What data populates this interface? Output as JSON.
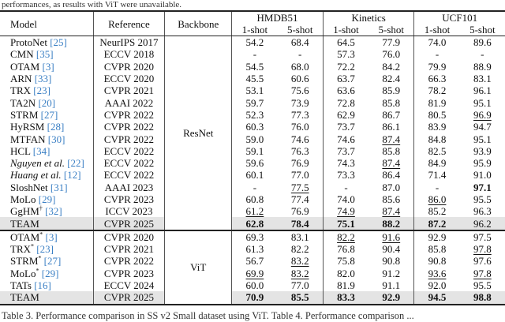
{
  "captions": {
    "top": "performances, as results with ViT were unavailable.",
    "bottom": "Table 3. Performance comparison in SS v2 Small dataset using ViT.   Table 4. Performance comparison ..."
  },
  "table": {
    "headers": {
      "model": "Model",
      "reference": "Reference",
      "backbone": "Backbone"
    },
    "datasets": [
      "HMDB51",
      "Kinetics",
      "UCF101"
    ],
    "shots": [
      "1-shot",
      "5-shot",
      "1-shot",
      "5-shot",
      "1-shot",
      "5-shot"
    ],
    "sections": [
      {
        "backbone": "ResNet",
        "rows": [
          {
            "name": "ProtoNet",
            "cite": "[25]",
            "reference": "NeurIPS 2017",
            "values": [
              "54.2",
              "68.4",
              "64.5",
              "77.9",
              "74.0",
              "89.6"
            ]
          },
          {
            "name": "CMN",
            "cite": "[35]",
            "reference": "ECCV 2018",
            "values": [
              "-",
              "-",
              "57.3",
              "76.0",
              "-",
              "-"
            ]
          },
          {
            "name": "OTAM",
            "cite": "[3]",
            "reference": "CVPR 2020",
            "values": [
              "54.5",
              "68.0",
              "72.2",
              "84.2",
              "79.9",
              "88.9"
            ]
          },
          {
            "name": "ARN",
            "cite": "[33]",
            "reference": "ECCV 2020",
            "values": [
              "45.5",
              "60.6",
              "63.7",
              "82.4",
              "66.3",
              "83.1"
            ]
          },
          {
            "name": "TRX",
            "cite": "[23]",
            "reference": "CVPR 2021",
            "values": [
              "53.1",
              "75.6",
              "63.6",
              "85.9",
              "78.2",
              "96.1"
            ]
          },
          {
            "name": "TA2N",
            "cite": "[20]",
            "reference": "AAAI 2022",
            "values": [
              "59.7",
              "73.9",
              "72.8",
              "85.8",
              "81.9",
              "95.1"
            ]
          },
          {
            "name": "STRM",
            "cite": "[27]",
            "reference": "CVPR 2022",
            "values": [
              "52.3",
              "77.3",
              "62.9",
              "86.7",
              "80.5",
              "96.9"
            ],
            "underline": [
              5
            ]
          },
          {
            "name": "HyRSM",
            "cite": "[28]",
            "reference": "CVPR 2022",
            "values": [
              "60.3",
              "76.0",
              "73.7",
              "86.1",
              "83.9",
              "94.7"
            ]
          },
          {
            "name": "MTFAN",
            "cite": "[30]",
            "reference": "CVPR 2022",
            "values": [
              "59.0",
              "74.6",
              "74.6",
              "87.4",
              "84.8",
              "95.1"
            ],
            "underline": [
              3
            ]
          },
          {
            "name": "HCL",
            "cite": "[34]",
            "reference": "ECCV 2022",
            "values": [
              "59.1",
              "76.3",
              "73.7",
              "85.8",
              "82.5",
              "93.9"
            ]
          },
          {
            "name": "Nguyen et al.",
            "italic": true,
            "cite": "[22]",
            "reference": "ECCV 2022",
            "values": [
              "59.6",
              "76.9",
              "74.3",
              "87.4",
              "84.9",
              "95.9"
            ],
            "underline": [
              3
            ]
          },
          {
            "name": "Huang et al.",
            "italic": true,
            "cite": "[12]",
            "reference": "ECCV 2022",
            "values": [
              "60.1",
              "77.0",
              "73.3",
              "86.4",
              "71.4",
              "91.0"
            ]
          },
          {
            "name": "SloshNet",
            "cite": "[31]",
            "reference": "AAAI 2023",
            "values": [
              "-",
              "77.5",
              "-",
              "87.0",
              "-",
              "97.1"
            ],
            "underline": [
              1
            ],
            "bold": [
              5
            ]
          },
          {
            "name": "MoLo",
            "cite": "[29]",
            "reference": "CVPR 2023",
            "values": [
              "60.8",
              "77.4",
              "74.0",
              "85.6",
              "86.0",
              "95.5"
            ],
            "underline": [
              4
            ]
          },
          {
            "name": "GgHM",
            "sup": "†",
            "cite": "[32]",
            "reference": "ICCV 2023",
            "values": [
              "61.2",
              "76.9",
              "74.9",
              "87.4",
              "85.2",
              "96.3"
            ],
            "underline": [
              0,
              2,
              3
            ]
          },
          {
            "name": "TEAM",
            "reference": "CVPR 2025",
            "values": [
              "62.8",
              "78.4",
              "75.1",
              "88.2",
              "87.2",
              "96.2"
            ],
            "bold": [
              0,
              1,
              2,
              3,
              4
            ],
            "highlight": true
          }
        ]
      },
      {
        "backbone": "ViT",
        "rows": [
          {
            "name": "OTAM",
            "sup": "*",
            "cite": "[3]",
            "reference": "CVPR 2020",
            "values": [
              "69.3",
              "83.1",
              "82.2",
              "91.6",
              "92.9",
              "97.5"
            ],
            "underline": [
              2,
              3
            ]
          },
          {
            "name": "TRX",
            "sup": "*",
            "cite": "[23]",
            "reference": "CVPR 2021",
            "values": [
              "61.3",
              "82.2",
              "76.8",
              "90.4",
              "85.8",
              "97.8"
            ],
            "underline": [
              5
            ]
          },
          {
            "name": "STRM",
            "sup": "*",
            "cite": "[27]",
            "reference": "CVPR 2022",
            "values": [
              "56.7",
              "83.2",
              "75.8",
              "90.8",
              "90.8",
              "97.6"
            ],
            "underline": [
              1
            ]
          },
          {
            "name": "MoLo",
            "sup": "*",
            "cite": "[29]",
            "reference": "CVPR 2023",
            "values": [
              "69.9",
              "83.2",
              "82.0",
              "91.2",
              "93.6",
              "97.8"
            ],
            "underline": [
              0,
              1,
              4,
              5
            ]
          },
          {
            "name": "TATs",
            "cite": "[16]",
            "reference": "ECCV 2024",
            "values": [
              "60.0",
              "77.0",
              "81.9",
              "91.1",
              "92.0",
              "95.5"
            ]
          },
          {
            "name": "TEAM",
            "reference": "CVPR 2025",
            "values": [
              "70.9",
              "85.5",
              "83.3",
              "92.9",
              "94.5",
              "98.8"
            ],
            "bold": [
              0,
              1,
              2,
              3,
              4,
              5
            ],
            "highlight": true
          }
        ]
      }
    ]
  }
}
